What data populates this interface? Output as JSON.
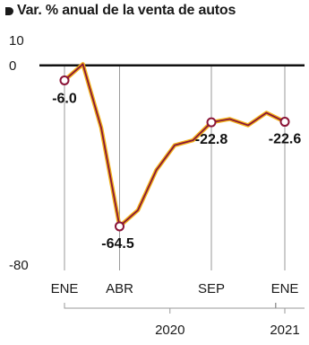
{
  "chart_data": {
    "type": "line",
    "title": "Var. % anual de la venta de autos",
    "xlabel": "",
    "ylabel": "",
    "ylim": [
      -80,
      10
    ],
    "yticks": [
      10,
      0,
      -80
    ],
    "x": [
      "2020-01",
      "2020-02",
      "2020-03",
      "2020-04",
      "2020-05",
      "2020-06",
      "2020-07",
      "2020-08",
      "2020-09",
      "2020-10",
      "2020-11",
      "2020-12",
      "2021-01"
    ],
    "values": [
      -6.0,
      0.5,
      -25,
      -64.5,
      -58,
      -42,
      -32,
      -30,
      -22.8,
      -21.5,
      -24,
      -19,
      -22.6
    ],
    "x_tick_labels": [
      "ENE",
      "ABR",
      "SEP",
      "ENE"
    ],
    "year_labels": [
      "2020",
      "2021"
    ],
    "data_labels": [
      {
        "x": "2020-01",
        "text": "-6.0"
      },
      {
        "x": "2020-04",
        "text": "-64.5"
      },
      {
        "x": "2020-09",
        "text": "-22.8"
      },
      {
        "x": "2021-01",
        "text": "-22.6"
      }
    ],
    "colors": {
      "line_outer": "#f2b21a",
      "line_inner": "#8a1538",
      "marker_fill": "#ffffff",
      "marker_stroke": "#8a1538",
      "zero_line": "#111111",
      "grid": "#9a9a9a"
    },
    "grid": true
  }
}
